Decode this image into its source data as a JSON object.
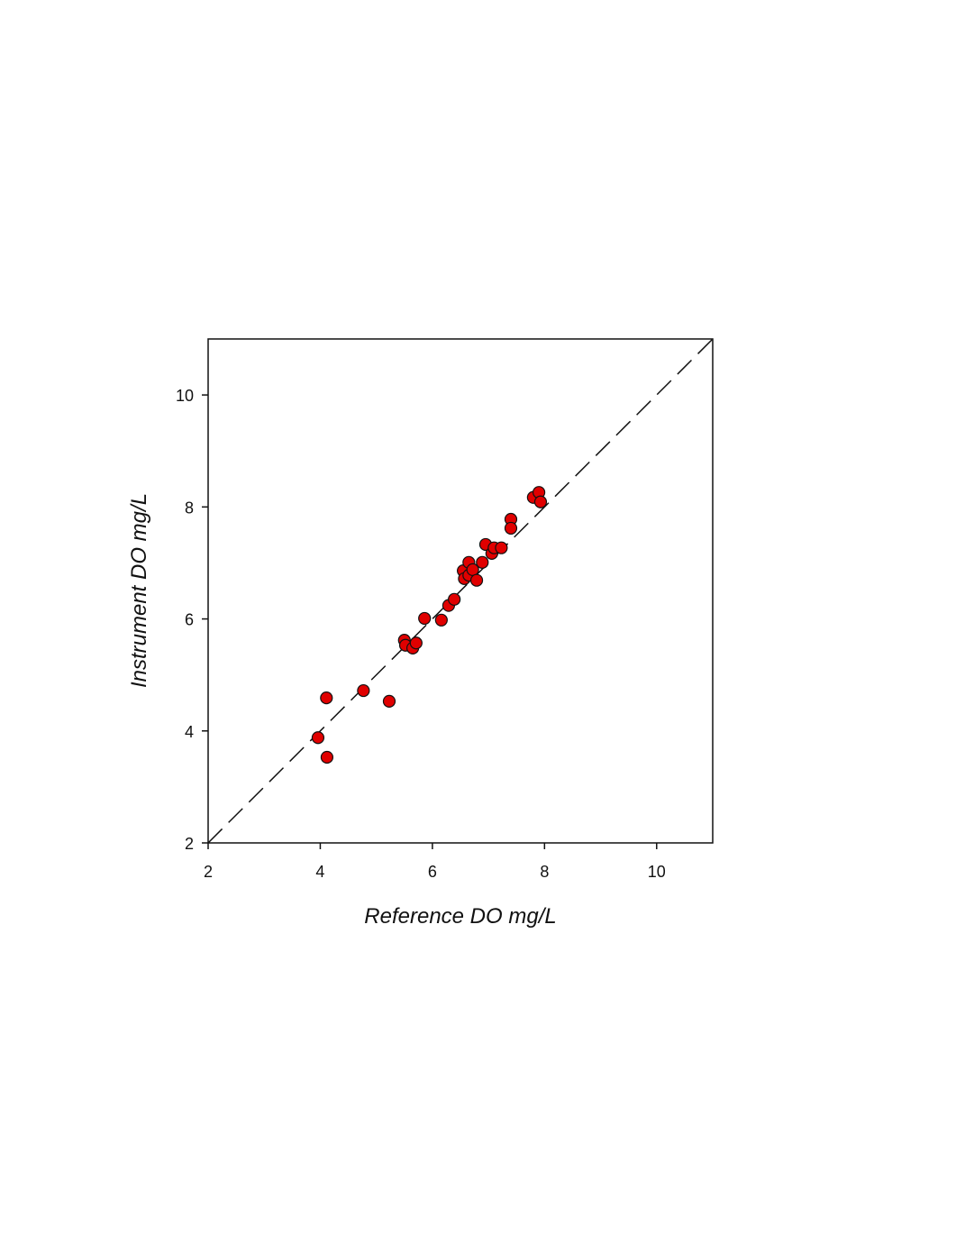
{
  "chart_data": {
    "type": "scatter",
    "x_label": "Reference DO mg/L",
    "y_label": "Instrument DO mg/L",
    "xlim": [
      2,
      11
    ],
    "ylim": [
      2,
      11
    ],
    "xticks": [
      2,
      4,
      6,
      8,
      10
    ],
    "yticks": [
      2,
      4,
      6,
      8,
      10
    ],
    "identity_line": true,
    "series": [
      {
        "color": "#e00000",
        "x": [
          3.96,
          4.12,
          4.11,
          4.77,
          5.23,
          5.5,
          5.52,
          5.65,
          5.71,
          5.86,
          6.16,
          6.29,
          6.39,
          6.55,
          6.57,
          6.65,
          6.65,
          6.72,
          6.79,
          6.89,
          6.95,
          7.06,
          7.1,
          7.23,
          7.4,
          7.4,
          7.8,
          7.9,
          7.93
        ],
        "values": [
          3.88,
          3.53,
          4.59,
          4.72,
          4.53,
          5.62,
          5.53,
          5.48,
          5.57,
          6.01,
          5.98,
          6.24,
          6.35,
          6.86,
          6.72,
          7.01,
          6.78,
          6.88,
          6.69,
          7.01,
          7.33,
          7.17,
          7.27,
          7.27,
          7.78,
          7.62,
          8.17,
          8.26,
          8.09
        ]
      }
    ]
  }
}
